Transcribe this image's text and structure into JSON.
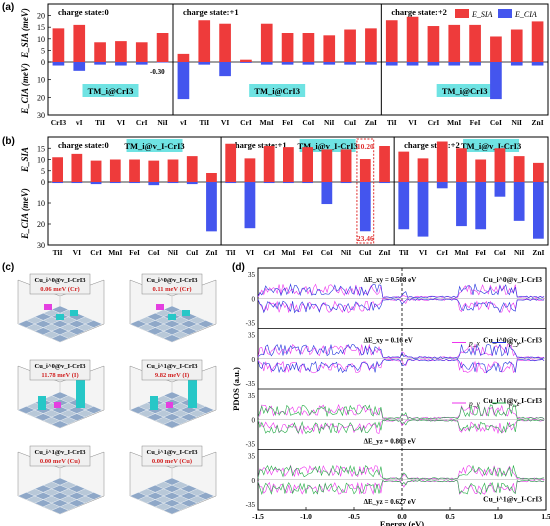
{
  "panel_labels": {
    "a": "(a)",
    "b": "(b)",
    "c": "(c)",
    "d": "(d)"
  },
  "colors": {
    "sia": "#ee3b3b",
    "cia": "#4455ee",
    "highlight_box": "#e03030",
    "label_bg": "#6fe3e3",
    "cyan_bar": "#27c7c7",
    "magenta_bar": "#e43fe0",
    "pdos_blue": "#2233dd",
    "pdos_magenta": "#ee33ee",
    "pdos_green": "#22aa44"
  },
  "chart_data": [
    {
      "type": "bar",
      "panel": "a",
      "ylabel_top": "E_SIA (meV)",
      "ylabel_bottom": "E_CIA (meV)",
      "ylim_top": [
        0,
        25
      ],
      "yticks_top": [
        "0",
        "5",
        "10",
        "15",
        "20"
      ],
      "ylim_bottom": [
        0,
        30
      ],
      "yticks_bottom": [
        "10",
        "20",
        "30"
      ],
      "legend": [
        "E_SIA",
        "E_CIA"
      ],
      "annotation": "-0.30",
      "sections": [
        {
          "title": "charge state:0",
          "material": "TM_i@CrI3",
          "categories": [
            "CrI3",
            "vI",
            "TiI",
            "VI",
            "CrI",
            "NiI"
          ],
          "sia": [
            14.5,
            16.0,
            8.5,
            9.0,
            8.5,
            12.5
          ],
          "cia": [
            2.0,
            5.0,
            1.5,
            2.0,
            1.5,
            0.3
          ]
        },
        {
          "title": "charge state:+1",
          "material": "TM_i@CrI3",
          "categories": [
            "vI",
            "TiI",
            "VI",
            "CrI",
            "MnI",
            "FeI",
            "CoI",
            "NiI",
            "CuI",
            "ZnI"
          ],
          "sia": [
            3.5,
            18.0,
            16.5,
            1.0,
            16.5,
            12.5,
            12.5,
            11.5,
            14.0,
            14.5
          ],
          "cia": [
            21.0,
            1.5,
            8.0,
            0.5,
            1.5,
            1.5,
            1.5,
            1.5,
            1.5,
            1.5
          ]
        },
        {
          "title": "charge state:+2",
          "material": "TM_i@CrI3",
          "categories": [
            "TiI",
            "VI",
            "CrI",
            "MnI",
            "FeI",
            "CoI",
            "NiI",
            "ZnI"
          ],
          "sia": [
            18.0,
            19.5,
            15.5,
            16.0,
            16.0,
            11.0,
            14.0,
            17.5
          ],
          "cia": [
            2.0,
            2.0,
            2.0,
            2.0,
            2.0,
            21.0,
            2.0,
            2.0
          ]
        }
      ]
    },
    {
      "type": "bar",
      "panel": "b",
      "ylabel_top": "E_SIA",
      "ylabel_bottom": "E_CIA (meV)",
      "ylim_top": [
        0,
        20
      ],
      "yticks_top": [
        "0",
        "5",
        "10",
        "15"
      ],
      "ylim_bottom": [
        0,
        30
      ],
      "yticks_bottom": [
        "10",
        "20",
        "30"
      ],
      "highlight": {
        "category": "CuI",
        "section": 1,
        "sia_label": "10.20",
        "cia_label": "23.46"
      },
      "sections": [
        {
          "title": "charge state:0",
          "material": "TM_i@v_I-CrI3",
          "categories": [
            "TiI",
            "VI",
            "CrI",
            "MnI",
            "FeI",
            "CoI",
            "NiI",
            "CuI",
            "ZnI"
          ],
          "sia": [
            11.0,
            12.5,
            9.5,
            10.0,
            10.0,
            9.5,
            10.0,
            11.5,
            4.0
          ],
          "cia": [
            0.5,
            0.5,
            1.0,
            0.5,
            0.5,
            1.5,
            0.5,
            1.0,
            23.5
          ]
        },
        {
          "title": "charge state:+1",
          "material": "TM_i@v_I-CrI3",
          "categories": [
            "TiI",
            "VI",
            "CrI",
            "MnI",
            "FeI",
            "CoI",
            "NiI",
            "CuI",
            "ZnI"
          ],
          "sia": [
            17.0,
            10.5,
            16.0,
            15.5,
            15.5,
            14.5,
            14.5,
            10.2,
            16.0
          ],
          "cia": [
            0.5,
            22.0,
            0.5,
            0.5,
            0.5,
            10.5,
            0.5,
            23.46,
            0.5
          ]
        },
        {
          "title": "charge state:+2",
          "material": "TM_i@v_I-CrI3",
          "categories": [
            "TiI",
            "VI",
            "CrI",
            "MnI",
            "FeI",
            "CoI",
            "NiI",
            "ZnI"
          ],
          "sia": [
            13.5,
            10.5,
            18.0,
            15.0,
            10.0,
            15.0,
            11.5,
            8.5
          ],
          "cia": [
            22.5,
            26.0,
            3.0,
            21.0,
            22.5,
            7.0,
            18.5,
            27.0
          ]
        }
      ]
    },
    {
      "type": "line",
      "panel": "d",
      "xlabel": "Energy (eV)",
      "ylabel": "PDOS (a.u.)",
      "xlim": [
        -1.5,
        1.5
      ],
      "xticks": [
        "-1.5",
        "-1.0",
        "-0.5",
        "0.0",
        "0.5",
        "1.0",
        "1.5"
      ],
      "subpanels": [
        {
          "label": "Cu_i^0@v_I-CrI3",
          "delta": "ΔE_xy = 0.508 eV",
          "yticks": [
            "35",
            "0",
            "-35"
          ],
          "series": [
            "px",
            "py"
          ]
        },
        {
          "label": "Cu_i^0@v_I-CrI3",
          "delta": "ΔE_xy = 0.16 eV",
          "yticks": [
            "35",
            "0",
            "-35"
          ],
          "series": [
            "px",
            "py"
          ]
        },
        {
          "label": "Cu_i^1@v_I-CrI3",
          "delta": "ΔE_yz = 0.863 eV",
          "yticks": [
            "35",
            "0",
            "-35"
          ],
          "series": [
            "py",
            "pz"
          ]
        },
        {
          "label": "Cu_i^1@v_I-CrI3",
          "delta": "ΔE_yz = 0.627 eV",
          "yticks": [
            "35",
            "0",
            "-35"
          ],
          "series": [
            "py",
            "pz"
          ]
        }
      ],
      "legends": [
        [
          "p_x",
          "p_y"
        ],
        [
          "p_y",
          "p_z"
        ]
      ]
    }
  ],
  "panel_c": {
    "cards": [
      {
        "title": "Cu_i^0@v_I-CrI3",
        "value": "0.06 meV (Cr)",
        "bars": "small"
      },
      {
        "title": "Cu_i^0@v_I-CrI3",
        "value": "0.11 meV (Cr)",
        "bars": "small"
      },
      {
        "title": "Cu_i^0@v_I-CrI3",
        "value": "11.78 meV (I)",
        "bars": "tall"
      },
      {
        "title": "Cu_i^1@v_I-CrI3",
        "value": "9.82 meV (I)",
        "bars": "tall"
      },
      {
        "title": "Cu_i^1@v_I-CrI3",
        "value": "0.00 meV (Cu)",
        "bars": "flat"
      },
      {
        "title": "Cu_i^1@v_I-CrI3",
        "value": "0.00 meV (Cu)",
        "bars": "flat"
      }
    ]
  }
}
